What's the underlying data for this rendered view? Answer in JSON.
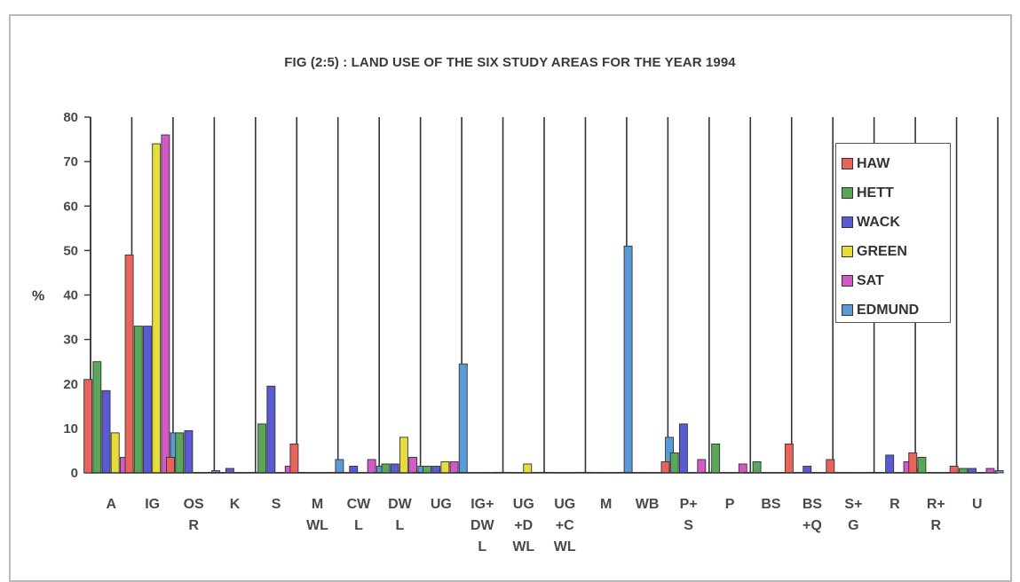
{
  "chart_data": {
    "type": "bar",
    "title": "FIG (2:5) : LAND USE OF THE SIX STUDY AREAS FOR THE YEAR 1994",
    "ylabel": "%",
    "xlabel": "",
    "ylim": [
      0,
      80
    ],
    "yticks": [
      0,
      10,
      20,
      30,
      40,
      50,
      60,
      70,
      80
    ],
    "grid": "vertical lines between categories",
    "legend_position": "top-right",
    "categories": [
      "A",
      "IG",
      "OS\nR",
      "K",
      "S",
      "M\nWL",
      "CW\nL",
      "DW\nL",
      "UG",
      "IG+\nDW\nL",
      "UG\n+D\nWL",
      "UG\n+C\nWL",
      "M",
      "WB",
      "P+\nS",
      "P",
      "BS",
      "BS\n+Q",
      "S+\nG",
      "R",
      "R+\nR",
      "U"
    ],
    "series": [
      {
        "name": "HAW",
        "color": "#e8645a",
        "values": [
          21,
          49,
          3.5,
          0,
          0,
          6.5,
          0,
          0,
          0,
          0,
          0,
          0,
          0,
          0,
          2.5,
          0,
          0,
          6.5,
          3,
          0,
          4.5,
          1.5
        ]
      },
      {
        "name": "HETT",
        "color": "#5aa65a",
        "values": [
          25,
          33,
          9,
          0,
          11,
          0,
          0,
          2,
          1.5,
          0,
          0,
          0,
          0,
          0,
          4.5,
          6.5,
          2.5,
          0,
          0,
          0,
          3.5,
          1
        ]
      },
      {
        "name": "WACK",
        "color": "#5a5ad2",
        "values": [
          18.5,
          33,
          9.5,
          1,
          19.5,
          0,
          1.5,
          2,
          1.5,
          0,
          0,
          0,
          0,
          0,
          11,
          0,
          0,
          1.5,
          0,
          4,
          0,
          1
        ]
      },
      {
        "name": "GREEN",
        "color": "#e6dc3c",
        "values": [
          9,
          74,
          0,
          0,
          0,
          0,
          0,
          8,
          2.5,
          0,
          2,
          0,
          0,
          0,
          0,
          0,
          0,
          0,
          0,
          0,
          0,
          0
        ]
      },
      {
        "name": "SAT",
        "color": "#d25ac8",
        "values": [
          3.5,
          76,
          0,
          0,
          1.5,
          0,
          3,
          3.5,
          2.5,
          0,
          0,
          0,
          0,
          0,
          3,
          2,
          0,
          0,
          0,
          2.5,
          0,
          1
        ]
      },
      {
        "name": "EDMUND",
        "color": "#5a9ad8",
        "values": [
          0,
          9,
          0.5,
          0,
          0,
          3,
          1.5,
          1.5,
          24.5,
          0,
          0,
          0,
          51,
          8,
          0,
          0,
          0,
          0,
          0,
          1,
          0,
          0.5
        ]
      }
    ]
  }
}
